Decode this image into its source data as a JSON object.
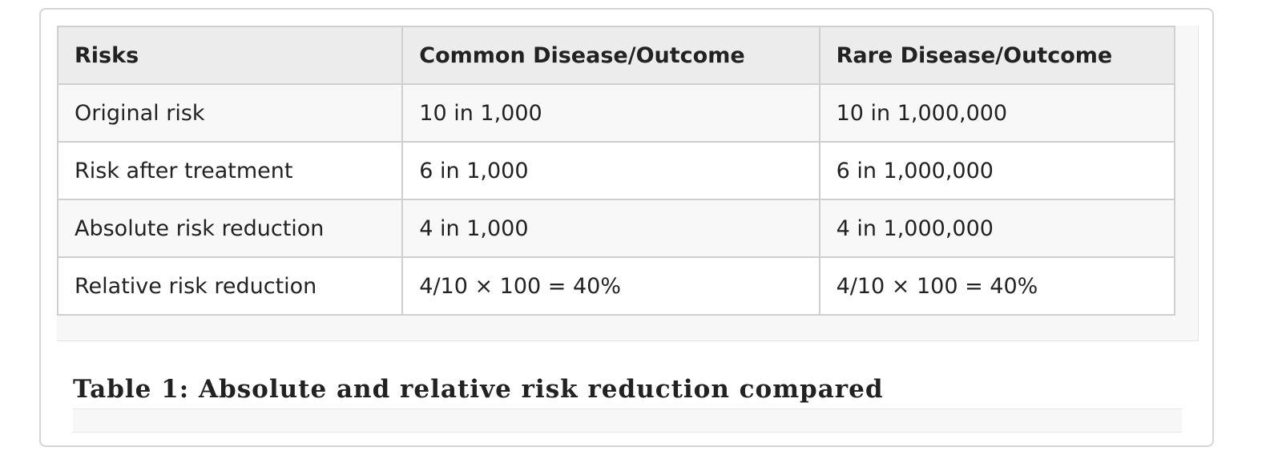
{
  "table": {
    "headers": [
      "Risks",
      "Common Disease/Outcome",
      "Rare Disease/Outcome"
    ],
    "rows": [
      [
        "Original risk",
        "10 in 1,000",
        "10 in 1,000,000"
      ],
      [
        "Risk after treatment",
        "6 in 1,000",
        "6 in 1,000,000"
      ],
      [
        "Absolute risk reduction",
        "4 in 1,000",
        "4 in 1,000,000"
      ],
      [
        "Relative risk reduction",
        "4/10 × 100 = 40%",
        "4/10 × 100 = 40%"
      ]
    ]
  },
  "caption": "Table 1: Absolute and relative risk reduction compared"
}
